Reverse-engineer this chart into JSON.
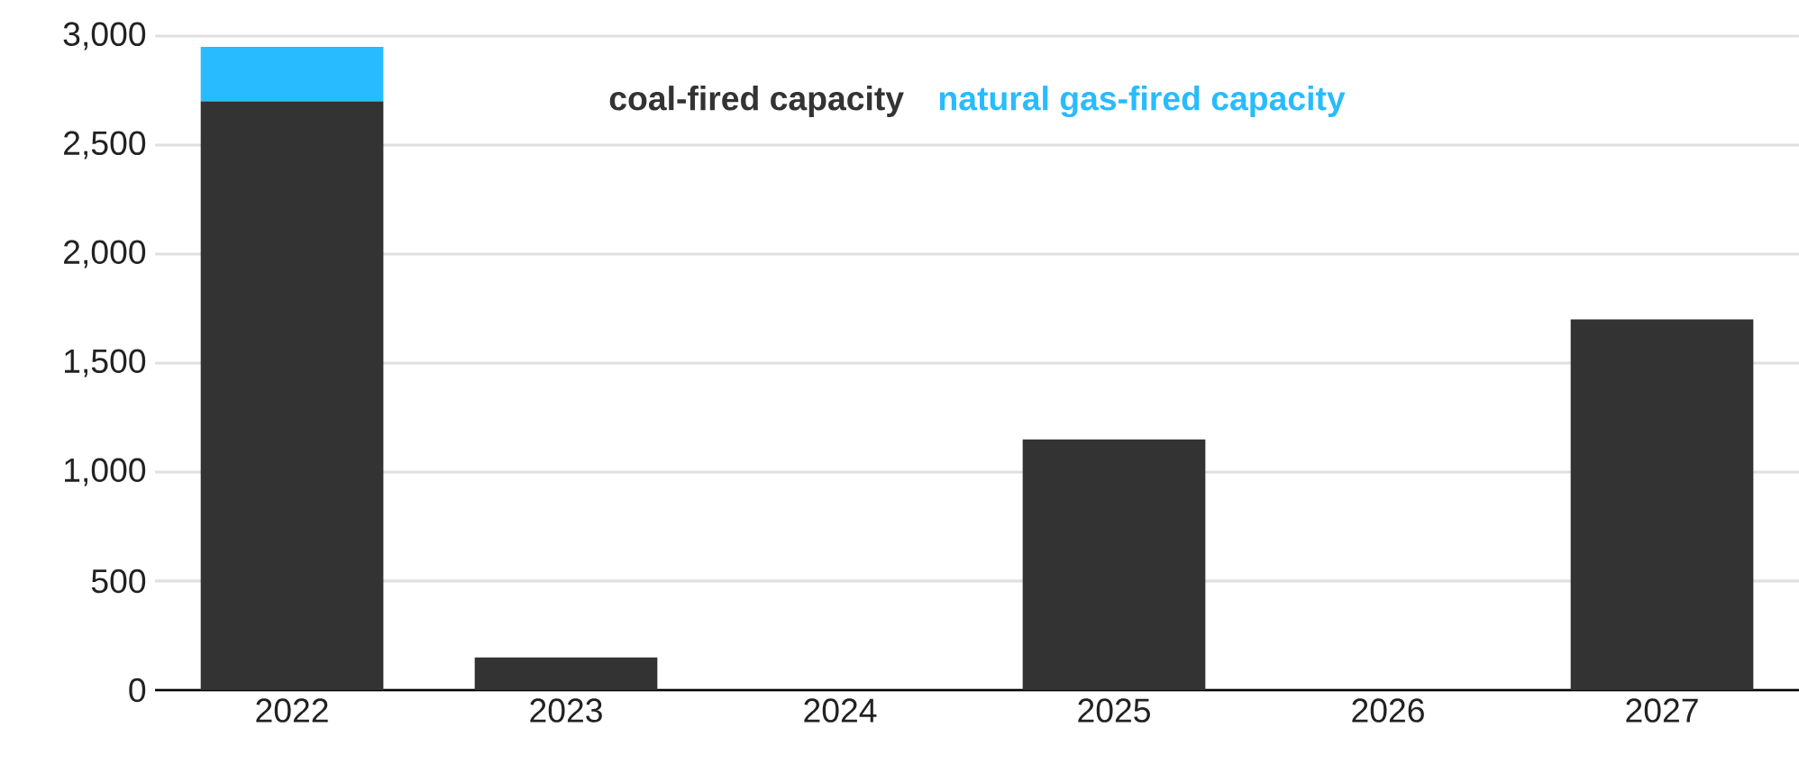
{
  "chart_data": {
    "type": "bar",
    "stacked": true,
    "categories": [
      "2022",
      "2023",
      "2024",
      "2025",
      "2026",
      "2027"
    ],
    "series": [
      {
        "name": "coal-fired capacity",
        "color": "#333333",
        "values": [
          2700,
          150,
          0,
          1150,
          0,
          1700
        ]
      },
      {
        "name": "natural gas-fired capacity",
        "color": "#29bbff",
        "values": [
          250,
          0,
          0,
          0,
          0,
          0
        ]
      }
    ],
    "ylim": [
      0,
      3000
    ],
    "yticks": [
      {
        "value": 0,
        "label": "0"
      },
      {
        "value": 500,
        "label": "500"
      },
      {
        "value": 1000,
        "label": "1,000"
      },
      {
        "value": 1500,
        "label": "1,500"
      },
      {
        "value": 2000,
        "label": "2,000"
      },
      {
        "value": 2500,
        "label": "2,500"
      },
      {
        "value": 3000,
        "label": "3,000"
      }
    ],
    "grid": "y",
    "legend": "top"
  }
}
